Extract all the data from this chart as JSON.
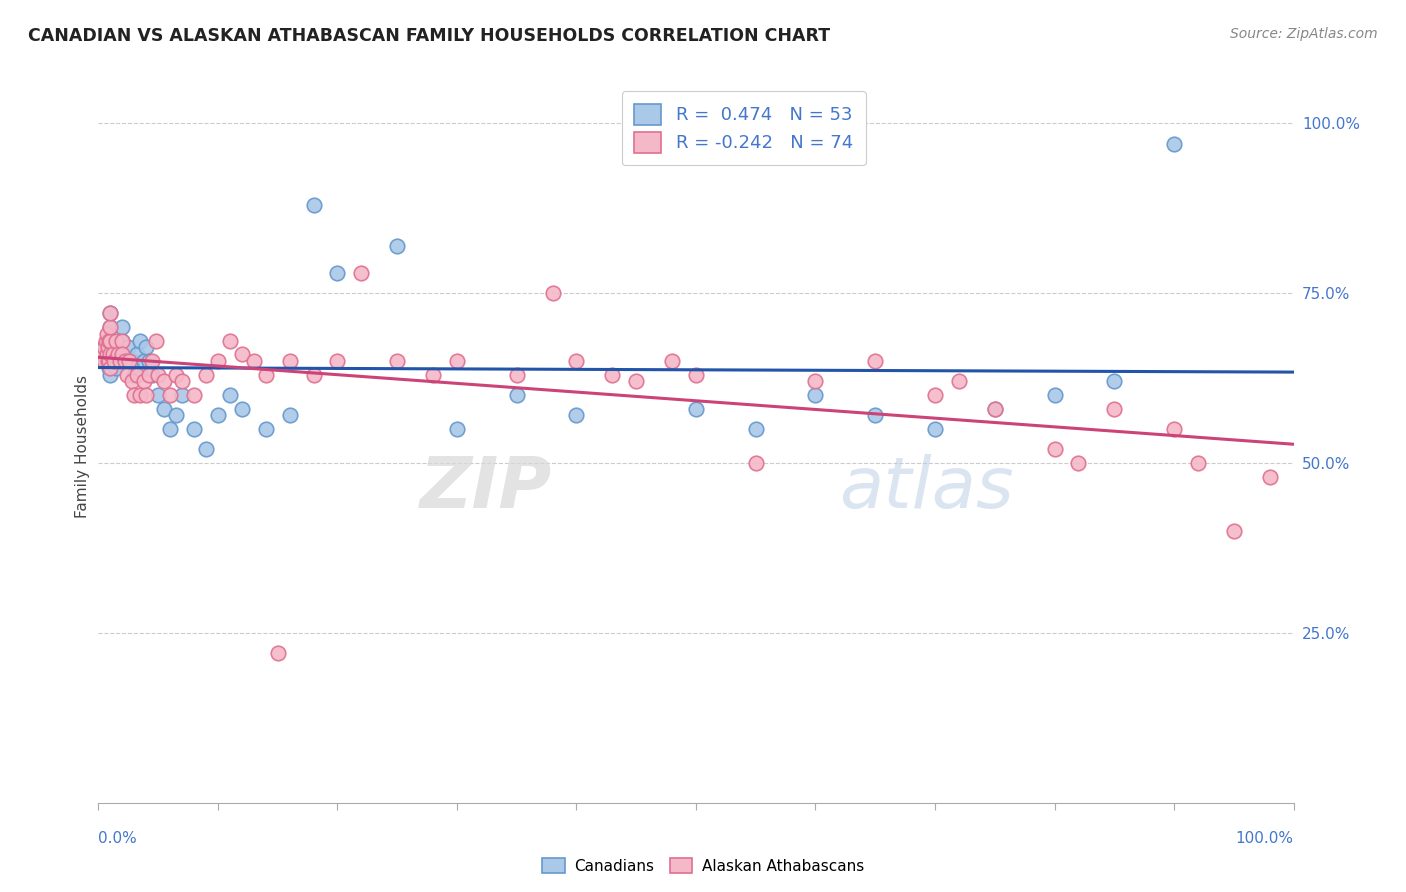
{
  "title": "CANADIAN VS ALASKAN ATHABASCAN FAMILY HOUSEHOLDS CORRELATION CHART",
  "source_text": "Source: ZipAtlas.com",
  "ylabel": "Family Households",
  "xlabel": "",
  "x_min": 0.0,
  "x_max": 1.0,
  "y_min": 0.0,
  "y_max": 1.05,
  "background_color": "#ffffff",
  "grid_color": "#cccccc",
  "canadians_color": "#aac8e8",
  "canadians_edge": "#6699cc",
  "alaskan_color": "#f5b8c8",
  "alaskan_edge": "#e07090",
  "trend_blue": "#2255aa",
  "trend_pink": "#cc4477",
  "R_canadian": 0.474,
  "N_canadian": 53,
  "R_alaskan": -0.242,
  "N_alaskan": 74,
  "canadians_label": "Canadians",
  "alaskan_label": "Alaskan Athabascans",
  "ytick_labels": [
    "25.0%",
    "50.0%",
    "75.0%",
    "100.0%"
  ],
  "ytick_values": [
    0.25,
    0.5,
    0.75,
    1.0
  ],
  "tick_color": "#4477cc",
  "canadians_x": [
    0.005,
    0.005,
    0.006,
    0.007,
    0.008,
    0.009,
    0.01,
    0.01,
    0.01,
    0.01,
    0.01,
    0.012,
    0.015,
    0.018,
    0.02,
    0.02,
    0.022,
    0.025,
    0.028,
    0.03,
    0.032,
    0.035,
    0.038,
    0.04,
    0.042,
    0.045,
    0.05,
    0.055,
    0.06,
    0.065,
    0.07,
    0.08,
    0.09,
    0.1,
    0.11,
    0.12,
    0.14,
    0.16,
    0.18,
    0.2,
    0.25,
    0.3,
    0.35,
    0.4,
    0.5,
    0.55,
    0.6,
    0.65,
    0.7,
    0.75,
    0.8,
    0.85,
    0.9
  ],
  "canadians_y": [
    0.65,
    0.67,
    0.65,
    0.68,
    0.66,
    0.64,
    0.63,
    0.65,
    0.67,
    0.7,
    0.72,
    0.68,
    0.64,
    0.66,
    0.68,
    0.7,
    0.65,
    0.67,
    0.65,
    0.63,
    0.66,
    0.68,
    0.65,
    0.67,
    0.65,
    0.63,
    0.6,
    0.58,
    0.55,
    0.57,
    0.6,
    0.55,
    0.52,
    0.57,
    0.6,
    0.58,
    0.55,
    0.57,
    0.88,
    0.78,
    0.82,
    0.55,
    0.6,
    0.57,
    0.58,
    0.55,
    0.6,
    0.57,
    0.55,
    0.58,
    0.6,
    0.62,
    0.97
  ],
  "alaskan_x": [
    0.004,
    0.005,
    0.005,
    0.006,
    0.007,
    0.007,
    0.008,
    0.008,
    0.009,
    0.009,
    0.01,
    0.01,
    0.01,
    0.01,
    0.01,
    0.012,
    0.013,
    0.015,
    0.016,
    0.018,
    0.02,
    0.02,
    0.022,
    0.024,
    0.026,
    0.028,
    0.03,
    0.032,
    0.035,
    0.038,
    0.04,
    0.042,
    0.045,
    0.048,
    0.05,
    0.055,
    0.06,
    0.065,
    0.07,
    0.08,
    0.09,
    0.1,
    0.11,
    0.12,
    0.13,
    0.14,
    0.15,
    0.16,
    0.18,
    0.2,
    0.22,
    0.25,
    0.28,
    0.3,
    0.35,
    0.38,
    0.4,
    0.43,
    0.45,
    0.48,
    0.5,
    0.55,
    0.6,
    0.65,
    0.7,
    0.72,
    0.75,
    0.8,
    0.82,
    0.85,
    0.9,
    0.92,
    0.95,
    0.98
  ],
  "alaskan_y": [
    0.66,
    0.65,
    0.67,
    0.68,
    0.66,
    0.69,
    0.65,
    0.67,
    0.65,
    0.68,
    0.64,
    0.66,
    0.68,
    0.7,
    0.72,
    0.66,
    0.65,
    0.68,
    0.66,
    0.65,
    0.68,
    0.66,
    0.65,
    0.63,
    0.65,
    0.62,
    0.6,
    0.63,
    0.6,
    0.62,
    0.6,
    0.63,
    0.65,
    0.68,
    0.63,
    0.62,
    0.6,
    0.63,
    0.62,
    0.6,
    0.63,
    0.65,
    0.68,
    0.66,
    0.65,
    0.63,
    0.22,
    0.65,
    0.63,
    0.65,
    0.78,
    0.65,
    0.63,
    0.65,
    0.63,
    0.75,
    0.65,
    0.63,
    0.62,
    0.65,
    0.63,
    0.5,
    0.62,
    0.65,
    0.6,
    0.62,
    0.58,
    0.52,
    0.5,
    0.58,
    0.55,
    0.5,
    0.4,
    0.48
  ]
}
